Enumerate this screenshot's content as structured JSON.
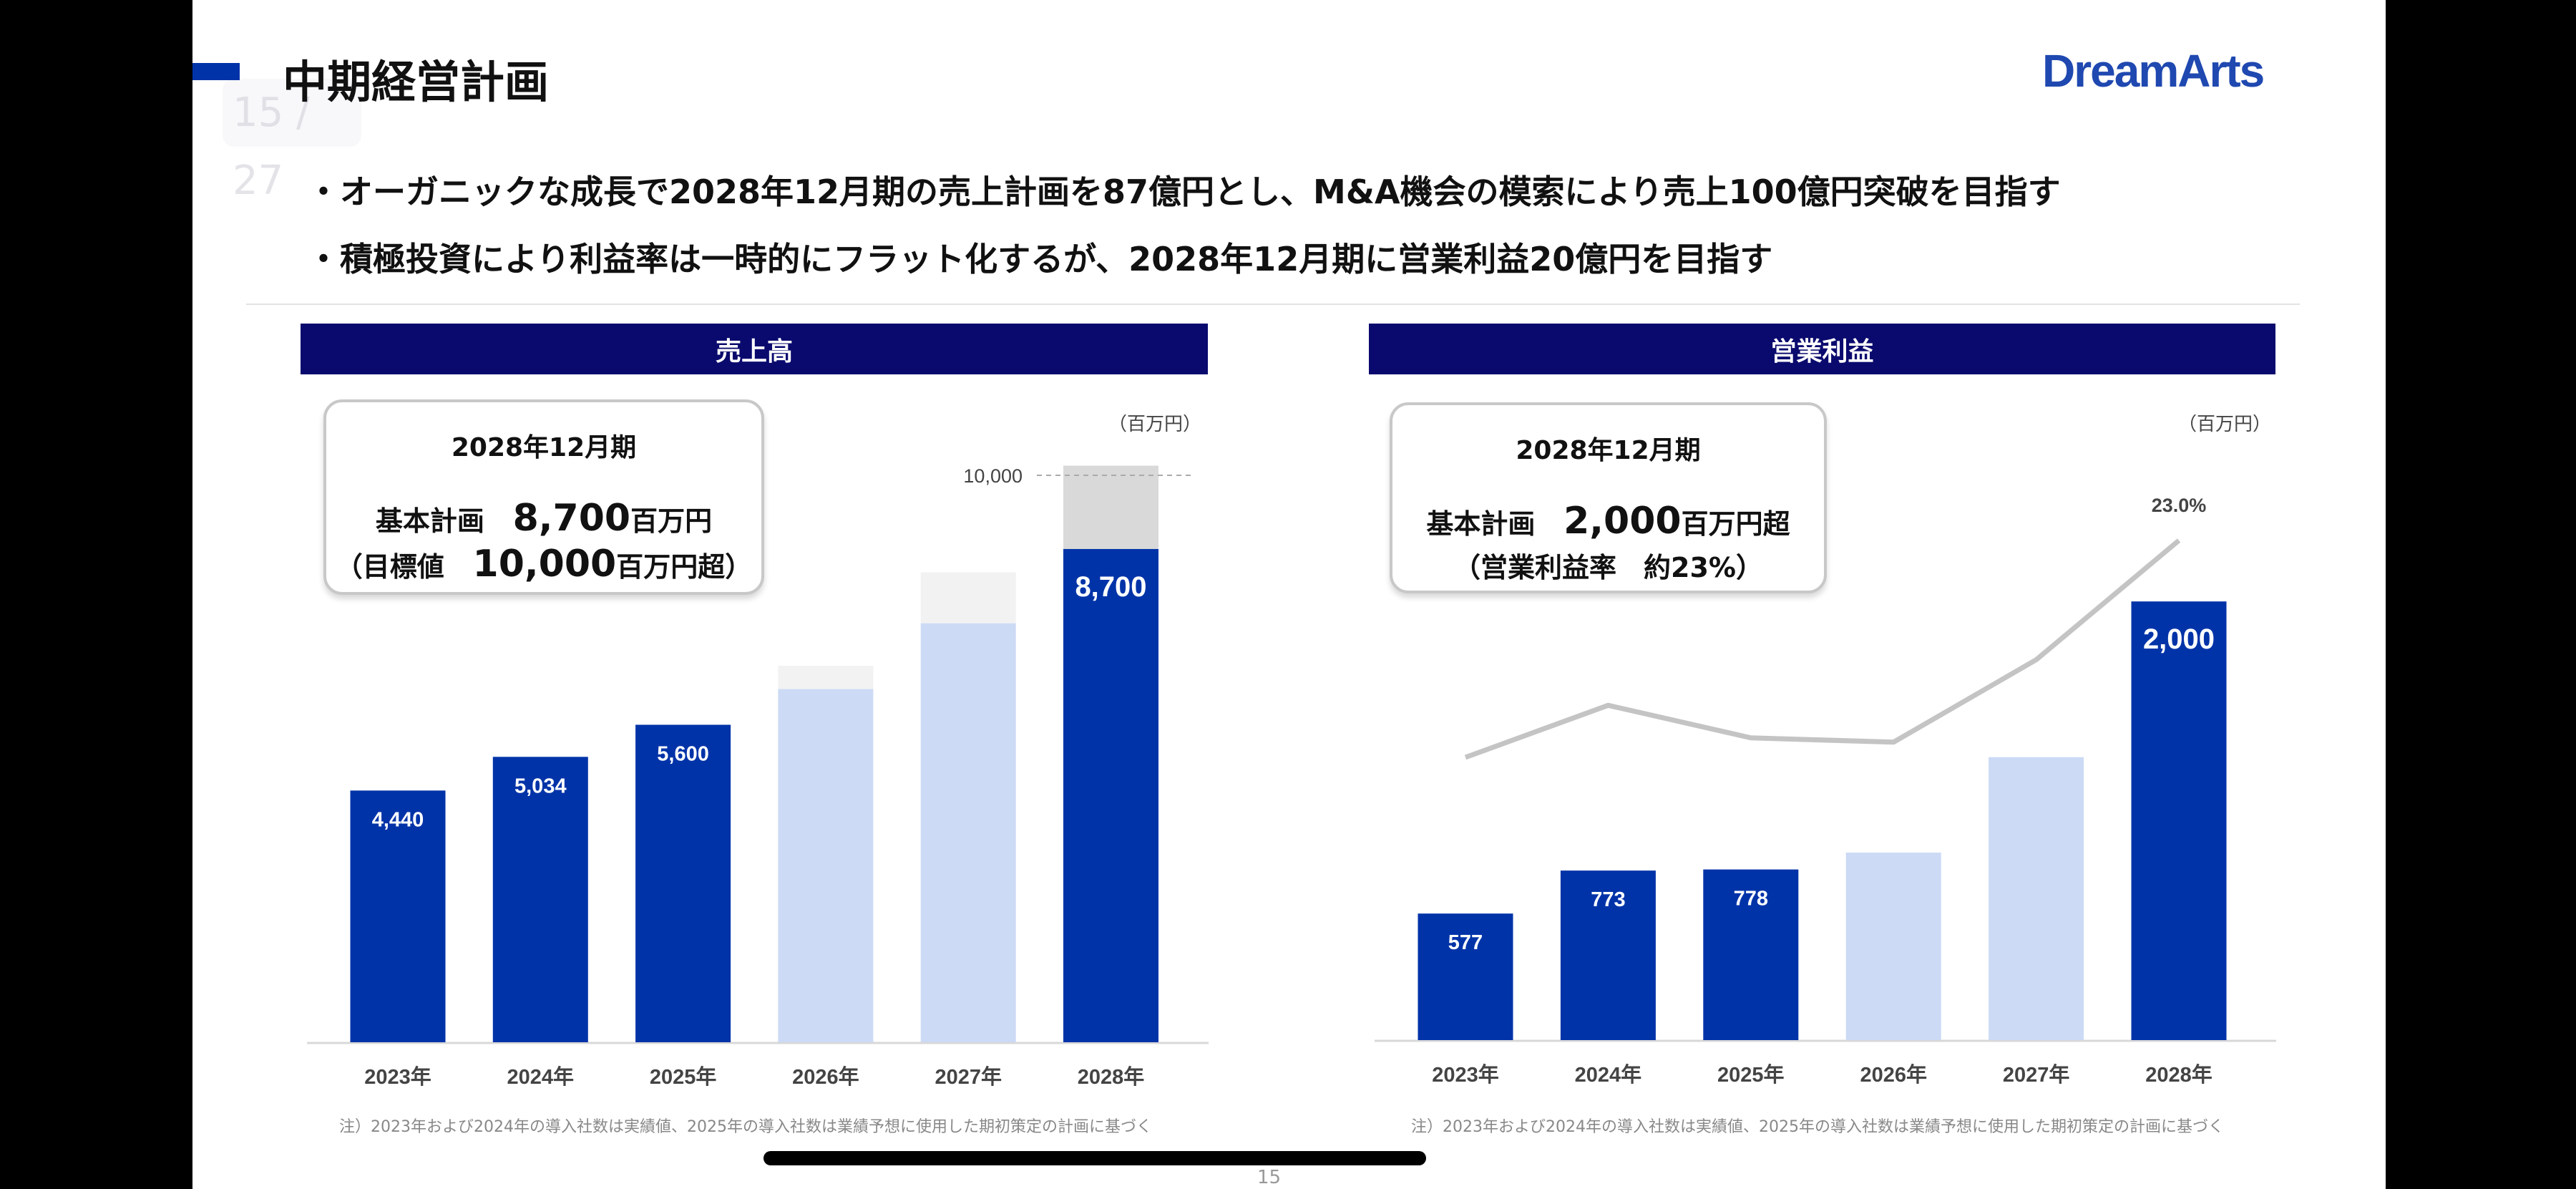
{
  "slide": {
    "title": "中期経営計画",
    "page_overlay": "15 / 27",
    "logo": "DreamArts",
    "bullets": [
      "・オーガニックな成長で2028年12月期の売上計画を87億円とし、M&A機会の模索により売上100億円突破を目指す",
      "・積極投資により利益率は一時的にフラット化するが、2028年12月期に営業利益20億円を目指す"
    ],
    "page_number": "15",
    "colors": {
      "navy_header": "#0a0a6e",
      "bar_actual": "#0033a8",
      "bar_plan": "#ccdaf5",
      "upside": "#d9d9d9",
      "line": "#c4c4c4",
      "accent": "#0033a8"
    }
  },
  "sales_callout": {
    "period": "2028年12月期",
    "plan_label": "基本計画",
    "plan_value": "8,700",
    "plan_unit": "百万円",
    "target_open": "（目標値",
    "target_value": "10,000",
    "target_unit": "百万円超）"
  },
  "profit_callout": {
    "period": "2028年12月期",
    "plan_label": "基本計画",
    "plan_value": "2,000",
    "plan_unit": "百万円超",
    "margin_text": "（営業利益率　約23%）"
  },
  "chart_data": [
    {
      "type": "bar",
      "title": "売上高",
      "unit": "（百万円）",
      "categories": [
        "2023年",
        "2024年",
        "2025年",
        "2026年",
        "2027年",
        "2028年"
      ],
      "values": [
        4440,
        5034,
        5600,
        6230,
        7390,
        8700
      ],
      "upside_values": [
        null,
        null,
        null,
        6640,
        8290,
        10170
      ],
      "value_labels": [
        "4,440",
        "5,034",
        "5,600",
        "",
        "",
        "8,700"
      ],
      "bar_kind": [
        "actual",
        "actual",
        "actual",
        "plan",
        "plan",
        "target"
      ],
      "reference_line": {
        "value": 10000,
        "label": "10,000"
      },
      "ylim": [
        0,
        10500
      ],
      "footnote": "注）2023年および2024年の導入社数は実績値、2025年の導入社数は業績予想に使用した期初策定の計画に基づく"
    },
    {
      "type": "bar+line",
      "title": "営業利益",
      "unit": "（百万円）",
      "categories": [
        "2023年",
        "2024年",
        "2025年",
        "2026年",
        "2027年",
        "2028年"
      ],
      "values": [
        577,
        773,
        778,
        855,
        1290,
        2000
      ],
      "value_labels": [
        "577",
        "773",
        "778",
        "",
        "",
        "2,000"
      ],
      "bar_kind": [
        "actual",
        "actual",
        "actual",
        "plan",
        "plan",
        "target"
      ],
      "margin_percent": [
        13.0,
        15.4,
        13.9,
        13.7,
        17.5,
        23.0
      ],
      "margin_label": "23.0%",
      "ylim": [
        0,
        2100
      ],
      "footnote": "注）2023年および2024年の導入社数は実績値、2025年の導入社数は業績予想に使用した期初策定の計画に基づく"
    }
  ]
}
